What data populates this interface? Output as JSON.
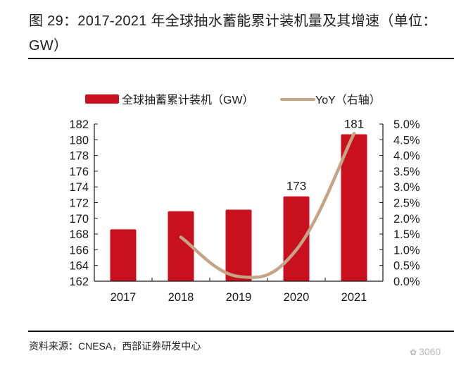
{
  "header": {
    "title": "图 29：2017-2021 年全球抽水蓄能累计装机量及其增速（单位：GW）"
  },
  "footer": {
    "source": "资料来源：CNESA，西部证券研发中心",
    "watermark_text": "3060",
    "watermark_icon": "wechat-icon"
  },
  "colors": {
    "bar": "#c8101e",
    "line": "#c4a484",
    "axis": "#1a1a1a"
  },
  "chart_data": {
    "type": "bar",
    "title": "2017-2021 年全球抽水蓄能累计装机量及其增速（单位：GW）",
    "categories": [
      "2017",
      "2018",
      "2019",
      "2020",
      "2021"
    ],
    "series": [
      {
        "name": "全球抽蓄累计装机（GW）",
        "type": "bar",
        "axis": "left",
        "values": [
          168.6,
          170.9,
          171.1,
          172.8,
          180.7
        ],
        "data_labels": [
          null,
          null,
          null,
          "173",
          "181"
        ]
      },
      {
        "name": "YoY（右轴）",
        "type": "line",
        "axis": "right",
        "smooth": true,
        "values": [
          null,
          1.4,
          0.15,
          1.0,
          4.7
        ]
      }
    ],
    "xlabel": "",
    "ylabel": "",
    "ylim": [
      162,
      182
    ],
    "y_ticks": [
      "162",
      "164",
      "166",
      "168",
      "170",
      "172",
      "174",
      "176",
      "178",
      "180",
      "182"
    ],
    "y2lim": [
      0,
      5
    ],
    "y2_ticks": [
      "0.0%",
      "0.5%",
      "1.0%",
      "1.5%",
      "2.0%",
      "2.5%",
      "3.0%",
      "3.5%",
      "4.0%",
      "4.5%",
      "5.0%"
    ],
    "legend_position": "top",
    "grid": false
  }
}
